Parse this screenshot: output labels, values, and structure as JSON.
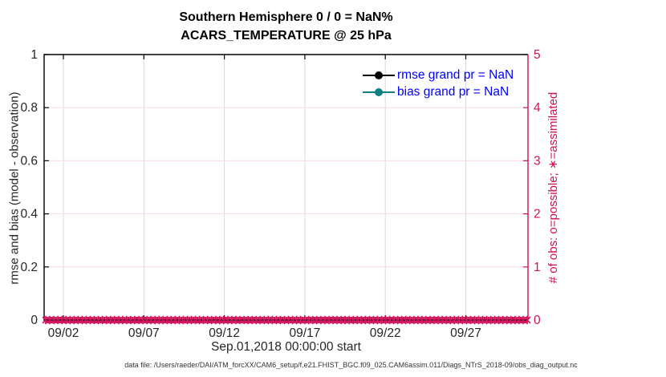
{
  "colors": {
    "accent_crimson": "#d1105a",
    "teal": "#0f8080",
    "legend_blue": "#0000ff",
    "axis_text": "#262626",
    "grid_gray": "#d9d9d9",
    "grid_pink": "#f8d9e4",
    "black": "#000000"
  },
  "title": {
    "line1": "Southern Hemisphere 0 / 0 = NaN%",
    "line2": "ACARS_TEMPERATURE @ 25 hPa"
  },
  "legend": {
    "items": [
      {
        "label": "rmse grand pr = NaN",
        "color": "#000000"
      },
      {
        "label": "bias grand pr = NaN",
        "color": "#0f8080"
      }
    ]
  },
  "axes": {
    "xlabel": "Sep.01,2018 00:00:00 start",
    "ylabel_left": "rmse and bias (model - observation)",
    "ylabel_right": "# of obs: o=possible; ∗=assimilated"
  },
  "footer": {
    "datafile_text": "data file: /Users/raeder/DAI/ATM_forcXX/CAM6_setup/f.e21.FHIST_BGC.f09_025.CAM6assim.011/Diags_NTrS_2018-09/obs_diag_output.nc"
  },
  "chart_data": {
    "type": "line",
    "title": "Southern Hemisphere 0 / 0 = NaN%",
    "subtitle": "ACARS_TEMPERATURE @ 25 hPa",
    "xlabel": "Sep.01,2018 00:00:00 start",
    "ylabel_left": "rmse and bias (model - observation)",
    "ylabel_right": "# of obs: o=possible; ∗=assimilated",
    "x_tick_labels": [
      "09/02",
      "09/07",
      "09/12",
      "09/17",
      "09/22",
      "09/27"
    ],
    "y_left_tick_labels": [
      "0",
      "0.2",
      "0.4",
      "0.6",
      "0.8",
      "1"
    ],
    "y_right_tick_labels": [
      "0",
      "1",
      "2",
      "3",
      "4",
      "5"
    ],
    "ylim_left": [
      0,
      1
    ],
    "ylim_right": [
      0,
      5
    ],
    "x_range": [
      "Sep 01 2018",
      "Oct 01 2018"
    ],
    "grid": true,
    "legend_position": "top-right-inside",
    "series": [
      {
        "name": "rmse grand pr = NaN",
        "axis": "left",
        "color": "#000000",
        "marker": "filled-circle",
        "values": "NaN (nothing plotted)"
      },
      {
        "name": "bias grand pr = NaN",
        "axis": "left",
        "color": "#0f8080",
        "marker": "filled-circle",
        "values": "NaN (nothing plotted)"
      },
      {
        "name": "# of obs assimilated",
        "axis": "right",
        "color": "#d1105a",
        "marker": "asterisk",
        "constant_value": 0,
        "n_points": 120
      }
    ]
  }
}
